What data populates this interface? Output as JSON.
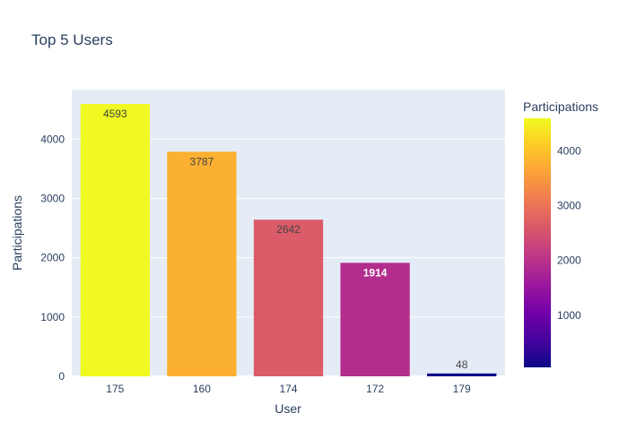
{
  "chart_data": {
    "type": "bar",
    "title": "Top 5 Users",
    "xlabel": "User",
    "ylabel": "Participations",
    "categories": [
      "175",
      "160",
      "174",
      "172",
      "179"
    ],
    "values": [
      4593,
      3787,
      2642,
      1914,
      48
    ],
    "ylim": [
      0,
      4835
    ],
    "yticks": [
      0,
      1000,
      2000,
      3000,
      4000
    ],
    "grid": true,
    "colorbar": {
      "title": "Participations",
      "range": [
        48,
        4593
      ],
      "ticks": [
        1000,
        2000,
        3000,
        4000
      ],
      "colorscale": "plasma"
    },
    "colors": {
      "plot_background": "#e5ecf6",
      "gridline": "#ffffff",
      "text": "#2a3f5f"
    }
  }
}
